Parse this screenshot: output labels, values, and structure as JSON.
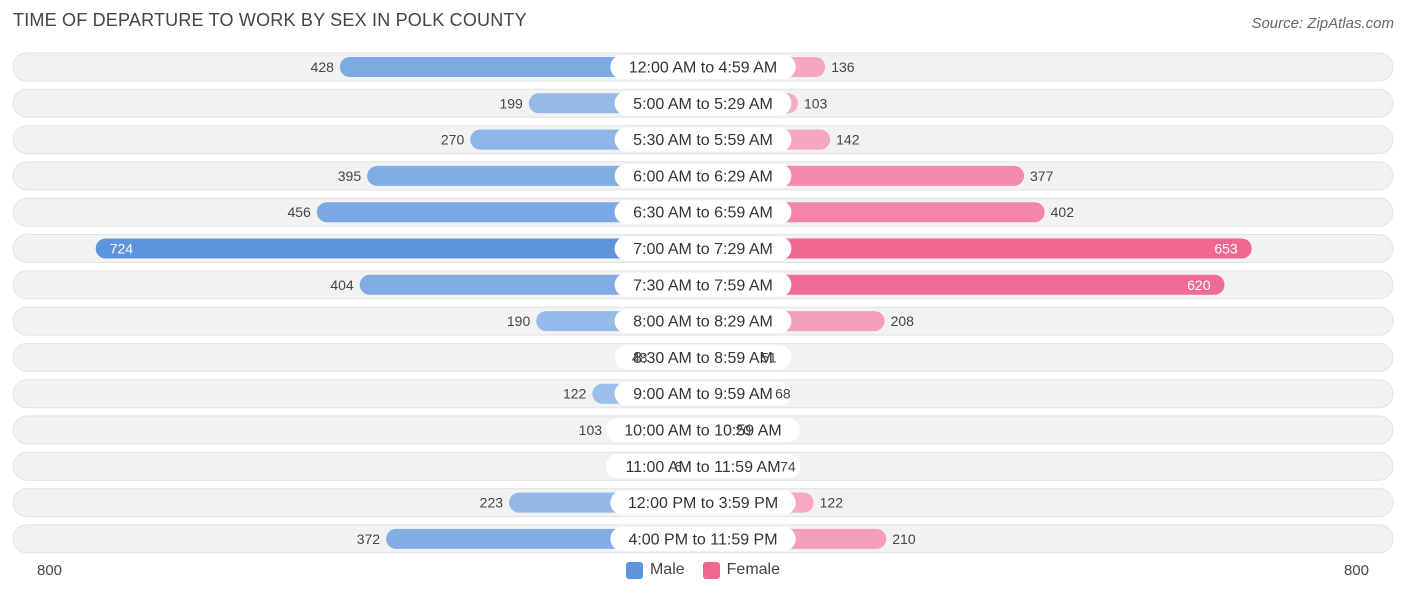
{
  "header": {
    "title": "TIME OF DEPARTURE TO WORK BY SEX IN POLK COUNTY",
    "source": "Source: ZipAtlas.com"
  },
  "axis": {
    "left_label": "800",
    "right_label": "800"
  },
  "legend": {
    "male_label": "Male",
    "female_label": "Female"
  },
  "colors": {
    "male": "#6a9fdf",
    "male_strong": "#5d95dc",
    "female": "#f78fb1",
    "female_strong": "#f06792",
    "row_bg": "#f2f2f2",
    "row_border": "#e3e3e3"
  },
  "chart_data": {
    "type": "bar",
    "orientation": "horizontal-diverging",
    "title": "TIME OF DEPARTURE TO WORK BY SEX IN POLK COUNTY",
    "xlim": [
      -800,
      800
    ],
    "categories": [
      "12:00 AM to 4:59 AM",
      "5:00 AM to 5:29 AM",
      "5:30 AM to 5:59 AM",
      "6:00 AM to 6:29 AM",
      "6:30 AM to 6:59 AM",
      "7:00 AM to 7:29 AM",
      "7:30 AM to 7:59 AM",
      "8:00 AM to 8:29 AM",
      "8:30 AM to 8:59 AM",
      "9:00 AM to 9:59 AM",
      "10:00 AM to 10:59 AM",
      "11:00 AM to 11:59 AM",
      "12:00 PM to 3:59 PM",
      "4:00 PM to 11:59 PM"
    ],
    "series": [
      {
        "name": "Male",
        "values": [
          428,
          199,
          270,
          395,
          456,
          724,
          404,
          190,
          48,
          122,
          103,
          6,
          223,
          372
        ]
      },
      {
        "name": "Female",
        "values": [
          136,
          103,
          142,
          377,
          402,
          653,
          620,
          208,
          51,
          68,
          20,
          74,
          122,
          210
        ]
      }
    ]
  }
}
